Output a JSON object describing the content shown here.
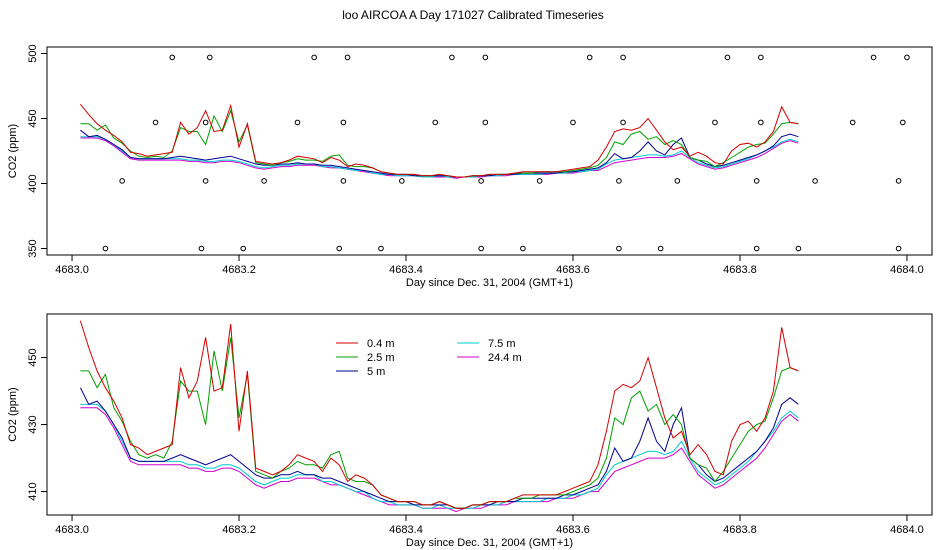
{
  "title": "loo AIRCOA A  Day 171027  Calibrated Timeseries",
  "colors": {
    "0.4 m": "#d40000",
    "2.5 m": "#00a000",
    "5 m": "#000090",
    "7.5 m": "#00cccc",
    "24.4 m": "#d000d0"
  },
  "chart_data": [
    {
      "type": "line",
      "xlabel": "Day since Dec. 31, 2004 (GMT+1)",
      "ylabel": "CO2 (ppm)",
      "xlim": [
        4682.97,
        4684.03
      ],
      "ylim": [
        345,
        505
      ],
      "xticks": [
        4683.0,
        4683.2,
        4683.4,
        4683.6,
        4683.8,
        4684.0
      ],
      "xtick_labels": [
        "4683.0",
        "4683.2",
        "4683.4",
        "4683.6",
        "4683.8",
        "4684.0"
      ],
      "yticks": [
        350,
        400,
        450,
        500
      ],
      "ytick_labels": [
        "350",
        "400",
        "450",
        "500"
      ],
      "legend": "none",
      "grid": false,
      "x_start": 4683.01,
      "x_step": 0.01,
      "series": [
        {
          "key": "0.4 m",
          "values": [
            461,
            453,
            446,
            441,
            437,
            432,
            424,
            423,
            421,
            422,
            423,
            424,
            447,
            438,
            443,
            456,
            440,
            441,
            460,
            428,
            446,
            417,
            416,
            415,
            416,
            418,
            421,
            420,
            419,
            416,
            420,
            418,
            413,
            415,
            414,
            412,
            409,
            408,
            407,
            407,
            407,
            406,
            406,
            407,
            406,
            405,
            405,
            406,
            406,
            407,
            407,
            407,
            408,
            409,
            409,
            409,
            409,
            409,
            410,
            411,
            412,
            413,
            418,
            428,
            440,
            442,
            441,
            443,
            450,
            441,
            432,
            426,
            428,
            421,
            424,
            421,
            416,
            415,
            425,
            430,
            431,
            428,
            432,
            440,
            459,
            447,
            446
          ]
        },
        {
          "key": "2.5 m",
          "values": [
            446,
            446,
            441,
            445,
            435,
            431,
            425,
            421,
            420,
            421,
            420,
            425,
            443,
            440,
            440,
            430,
            452,
            440,
            456,
            432,
            445,
            416,
            415,
            414,
            416,
            417,
            419,
            418,
            418,
            417,
            421,
            422,
            414,
            413,
            413,
            412,
            409,
            408,
            407,
            407,
            407,
            406,
            406,
            407,
            406,
            405,
            405,
            406,
            406,
            407,
            407,
            407,
            408,
            408,
            408,
            409,
            409,
            409,
            409,
            410,
            411,
            412,
            414,
            420,
            432,
            430,
            438,
            440,
            434,
            436,
            430,
            433,
            430,
            420,
            418,
            417,
            413,
            416,
            420,
            424,
            428,
            430,
            431,
            438,
            446,
            447,
            446
          ]
        },
        {
          "key": "5 m",
          "values": [
            441,
            436,
            437,
            434,
            430,
            426,
            420,
            419,
            419,
            419,
            419,
            420,
            421,
            420,
            419,
            418,
            419,
            420,
            421,
            419,
            417,
            415,
            414,
            414,
            415,
            415,
            416,
            415,
            415,
            414,
            414,
            413,
            412,
            411,
            410,
            409,
            408,
            407,
            407,
            407,
            406,
            406,
            406,
            406,
            406,
            405,
            405,
            406,
            406,
            406,
            407,
            407,
            407,
            408,
            408,
            408,
            408,
            408,
            409,
            409,
            410,
            411,
            412,
            416,
            423,
            419,
            420,
            425,
            432,
            425,
            422,
            430,
            435,
            420,
            418,
            415,
            413,
            414,
            416,
            418,
            420,
            422,
            425,
            429,
            436,
            438,
            436
          ]
        },
        {
          "key": "7.5 m",
          "values": [
            436,
            436,
            436,
            434,
            430,
            425,
            420,
            419,
            419,
            419,
            419,
            419,
            419,
            418,
            418,
            417,
            417,
            418,
            418,
            417,
            415,
            413,
            412,
            413,
            414,
            414,
            415,
            415,
            415,
            413,
            413,
            412,
            411,
            410,
            410,
            408,
            407,
            407,
            406,
            406,
            406,
            405,
            405,
            406,
            405,
            405,
            405,
            405,
            406,
            406,
            406,
            407,
            407,
            407,
            407,
            407,
            408,
            408,
            408,
            409,
            409,
            410,
            411,
            415,
            418,
            419,
            420,
            421,
            422,
            422,
            421,
            422,
            425,
            420,
            416,
            414,
            412,
            413,
            415,
            417,
            419,
            422,
            425,
            428,
            432,
            434,
            432
          ]
        },
        {
          "key": "24.4 m",
          "values": [
            435,
            435,
            435,
            433,
            429,
            424,
            419,
            418,
            418,
            418,
            418,
            418,
            418,
            417,
            417,
            416,
            416,
            417,
            417,
            416,
            414,
            412,
            411,
            412,
            413,
            413,
            414,
            414,
            414,
            413,
            412,
            412,
            411,
            410,
            409,
            408,
            407,
            406,
            406,
            406,
            406,
            405,
            405,
            405,
            405,
            404,
            405,
            405,
            405,
            406,
            406,
            406,
            407,
            407,
            407,
            407,
            407,
            408,
            408,
            408,
            409,
            410,
            410,
            413,
            416,
            417,
            418,
            419,
            420,
            420,
            420,
            421,
            423,
            419,
            415,
            413,
            411,
            412,
            414,
            416,
            418,
            420,
            423,
            427,
            431,
            433,
            431
          ]
        }
      ],
      "markers": {
        "type": "scatter",
        "x": [
          4683.04,
          4683.06,
          4683.1,
          4683.12,
          4683.155,
          4683.16,
          4683.16,
          4683.165,
          4683.205,
          4683.23,
          4683.27,
          4683.29,
          4683.32,
          4683.325,
          4683.325,
          4683.33,
          4683.37,
          4683.395,
          4683.435,
          4683.455,
          4683.49,
          4683.49,
          4683.495,
          4683.495,
          4683.54,
          4683.56,
          4683.6,
          4683.62,
          4683.655,
          4683.655,
          4683.66,
          4683.66,
          4683.705,
          4683.725,
          4683.77,
          4683.785,
          4683.82,
          4683.82,
          4683.825,
          4683.825,
          4683.87,
          4683.89,
          4683.935,
          4683.96,
          4683.99,
          4683.99,
          4683.995,
          4684.0
        ],
        "y": [
          350,
          402,
          447,
          497,
          350,
          402,
          447,
          497,
          350,
          402,
          447,
          497,
          350,
          402,
          447,
          497,
          350,
          402,
          447,
          497,
          350,
          402,
          447,
          497,
          350,
          402,
          447,
          497,
          350,
          402,
          447,
          497,
          350,
          402,
          447,
          497,
          350,
          402,
          447,
          497,
          350,
          402,
          447,
          497,
          350,
          402,
          447,
          497
        ]
      }
    },
    {
      "type": "line",
      "xlabel": "Day since Dec. 31, 2004 (GMT+1)",
      "ylabel": "CO2 (ppm)",
      "xlim": [
        4682.97,
        4684.03
      ],
      "ylim": [
        403,
        463
      ],
      "xticks": [
        4683.0,
        4683.2,
        4683.4,
        4683.6,
        4683.8,
        4684.0
      ],
      "xtick_labels": [
        "4683.0",
        "4683.2",
        "4683.4",
        "4683.6",
        "4683.8",
        "4684.0"
      ],
      "yticks": [
        410,
        430,
        450
      ],
      "ytick_labels": [
        "410",
        "430",
        "450"
      ],
      "legend": "top-left",
      "grid": false,
      "x_start": 4683.01,
      "x_step": 0.01,
      "legend_entries": [
        "0.4 m",
        "2.5 m",
        "5 m",
        "7.5 m",
        "24.4 m"
      ],
      "use_series_of": 0
    }
  ]
}
